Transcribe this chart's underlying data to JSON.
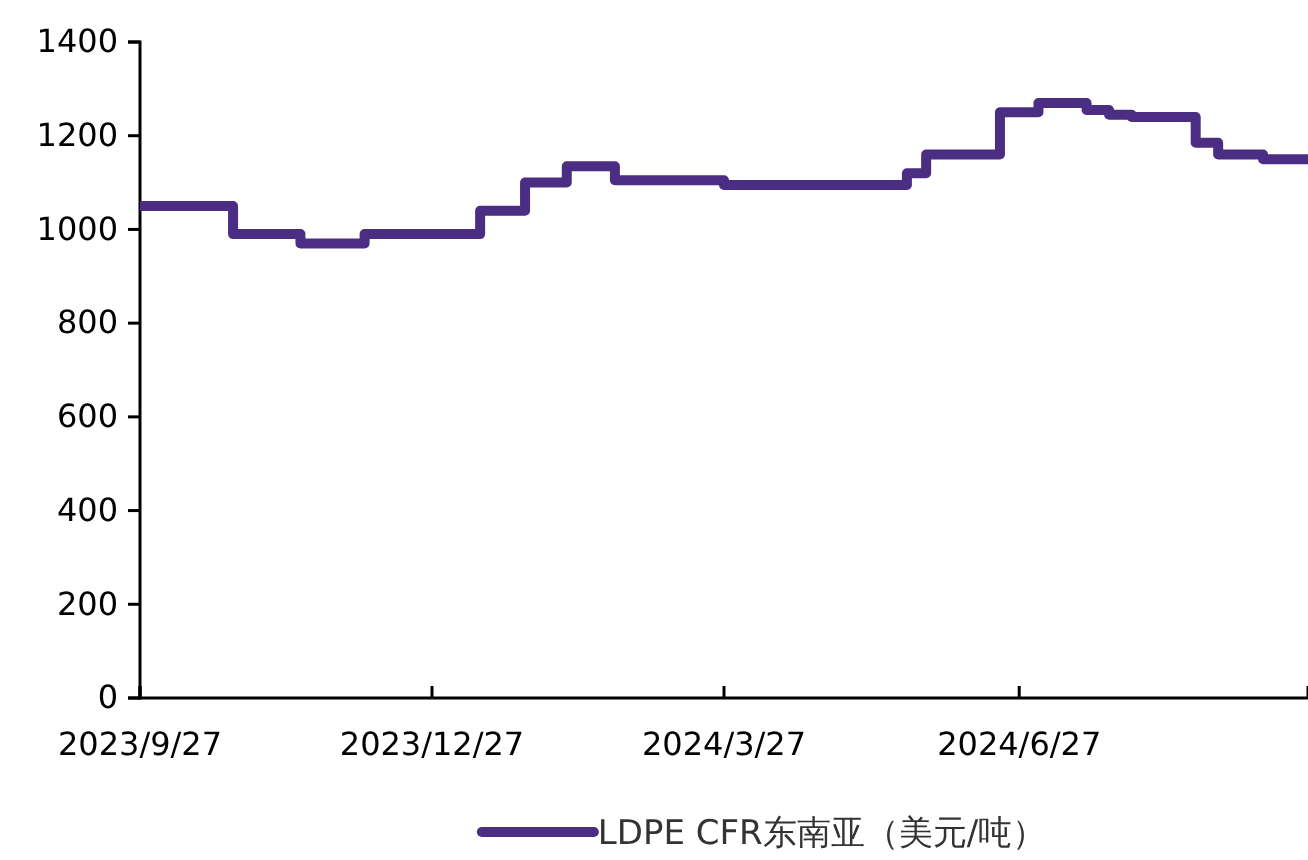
{
  "chart_data": {
    "type": "step",
    "x": [
      "2023-09-27",
      "2023-10-26",
      "2023-11-16",
      "2023-12-06",
      "2024-01-11",
      "2024-01-25",
      "2024-02-07",
      "2024-02-22",
      "2024-03-27",
      "2024-05-23",
      "2024-05-29",
      "2024-06-21",
      "2024-07-03",
      "2024-07-18",
      "2024-07-25",
      "2024-08-01",
      "2024-08-21",
      "2024-08-28",
      "2024-09-11",
      "2024-09-25"
    ],
    "series": [
      {
        "name": "LDPE CFR东南亚（美元/吨）",
        "color": "#4b2d84",
        "values": [
          1050,
          990,
          970,
          990,
          1040,
          1100,
          1135,
          1105,
          1095,
          1120,
          1160,
          1250,
          1270,
          1255,
          1245,
          1240,
          1185,
          1160,
          1150,
          1150
        ]
      }
    ],
    "xlim": [
      "2023-09-27",
      "2024-09-25"
    ],
    "xticks": [
      {
        "value": "2023-09-27",
        "label": "2023/9/27"
      },
      {
        "value": "2023-12-27",
        "label": "2023/12/27"
      },
      {
        "value": "2024-03-27",
        "label": "2024/3/27"
      },
      {
        "value": "2024-06-27",
        "label": "2024/6/27"
      }
    ],
    "ylim": [
      0,
      1400
    ],
    "yticks": [
      0,
      200,
      400,
      600,
      800,
      1000,
      1200,
      1400
    ],
    "grid": false,
    "legend": "bottom",
    "line_style": "solid",
    "marker": "none"
  }
}
